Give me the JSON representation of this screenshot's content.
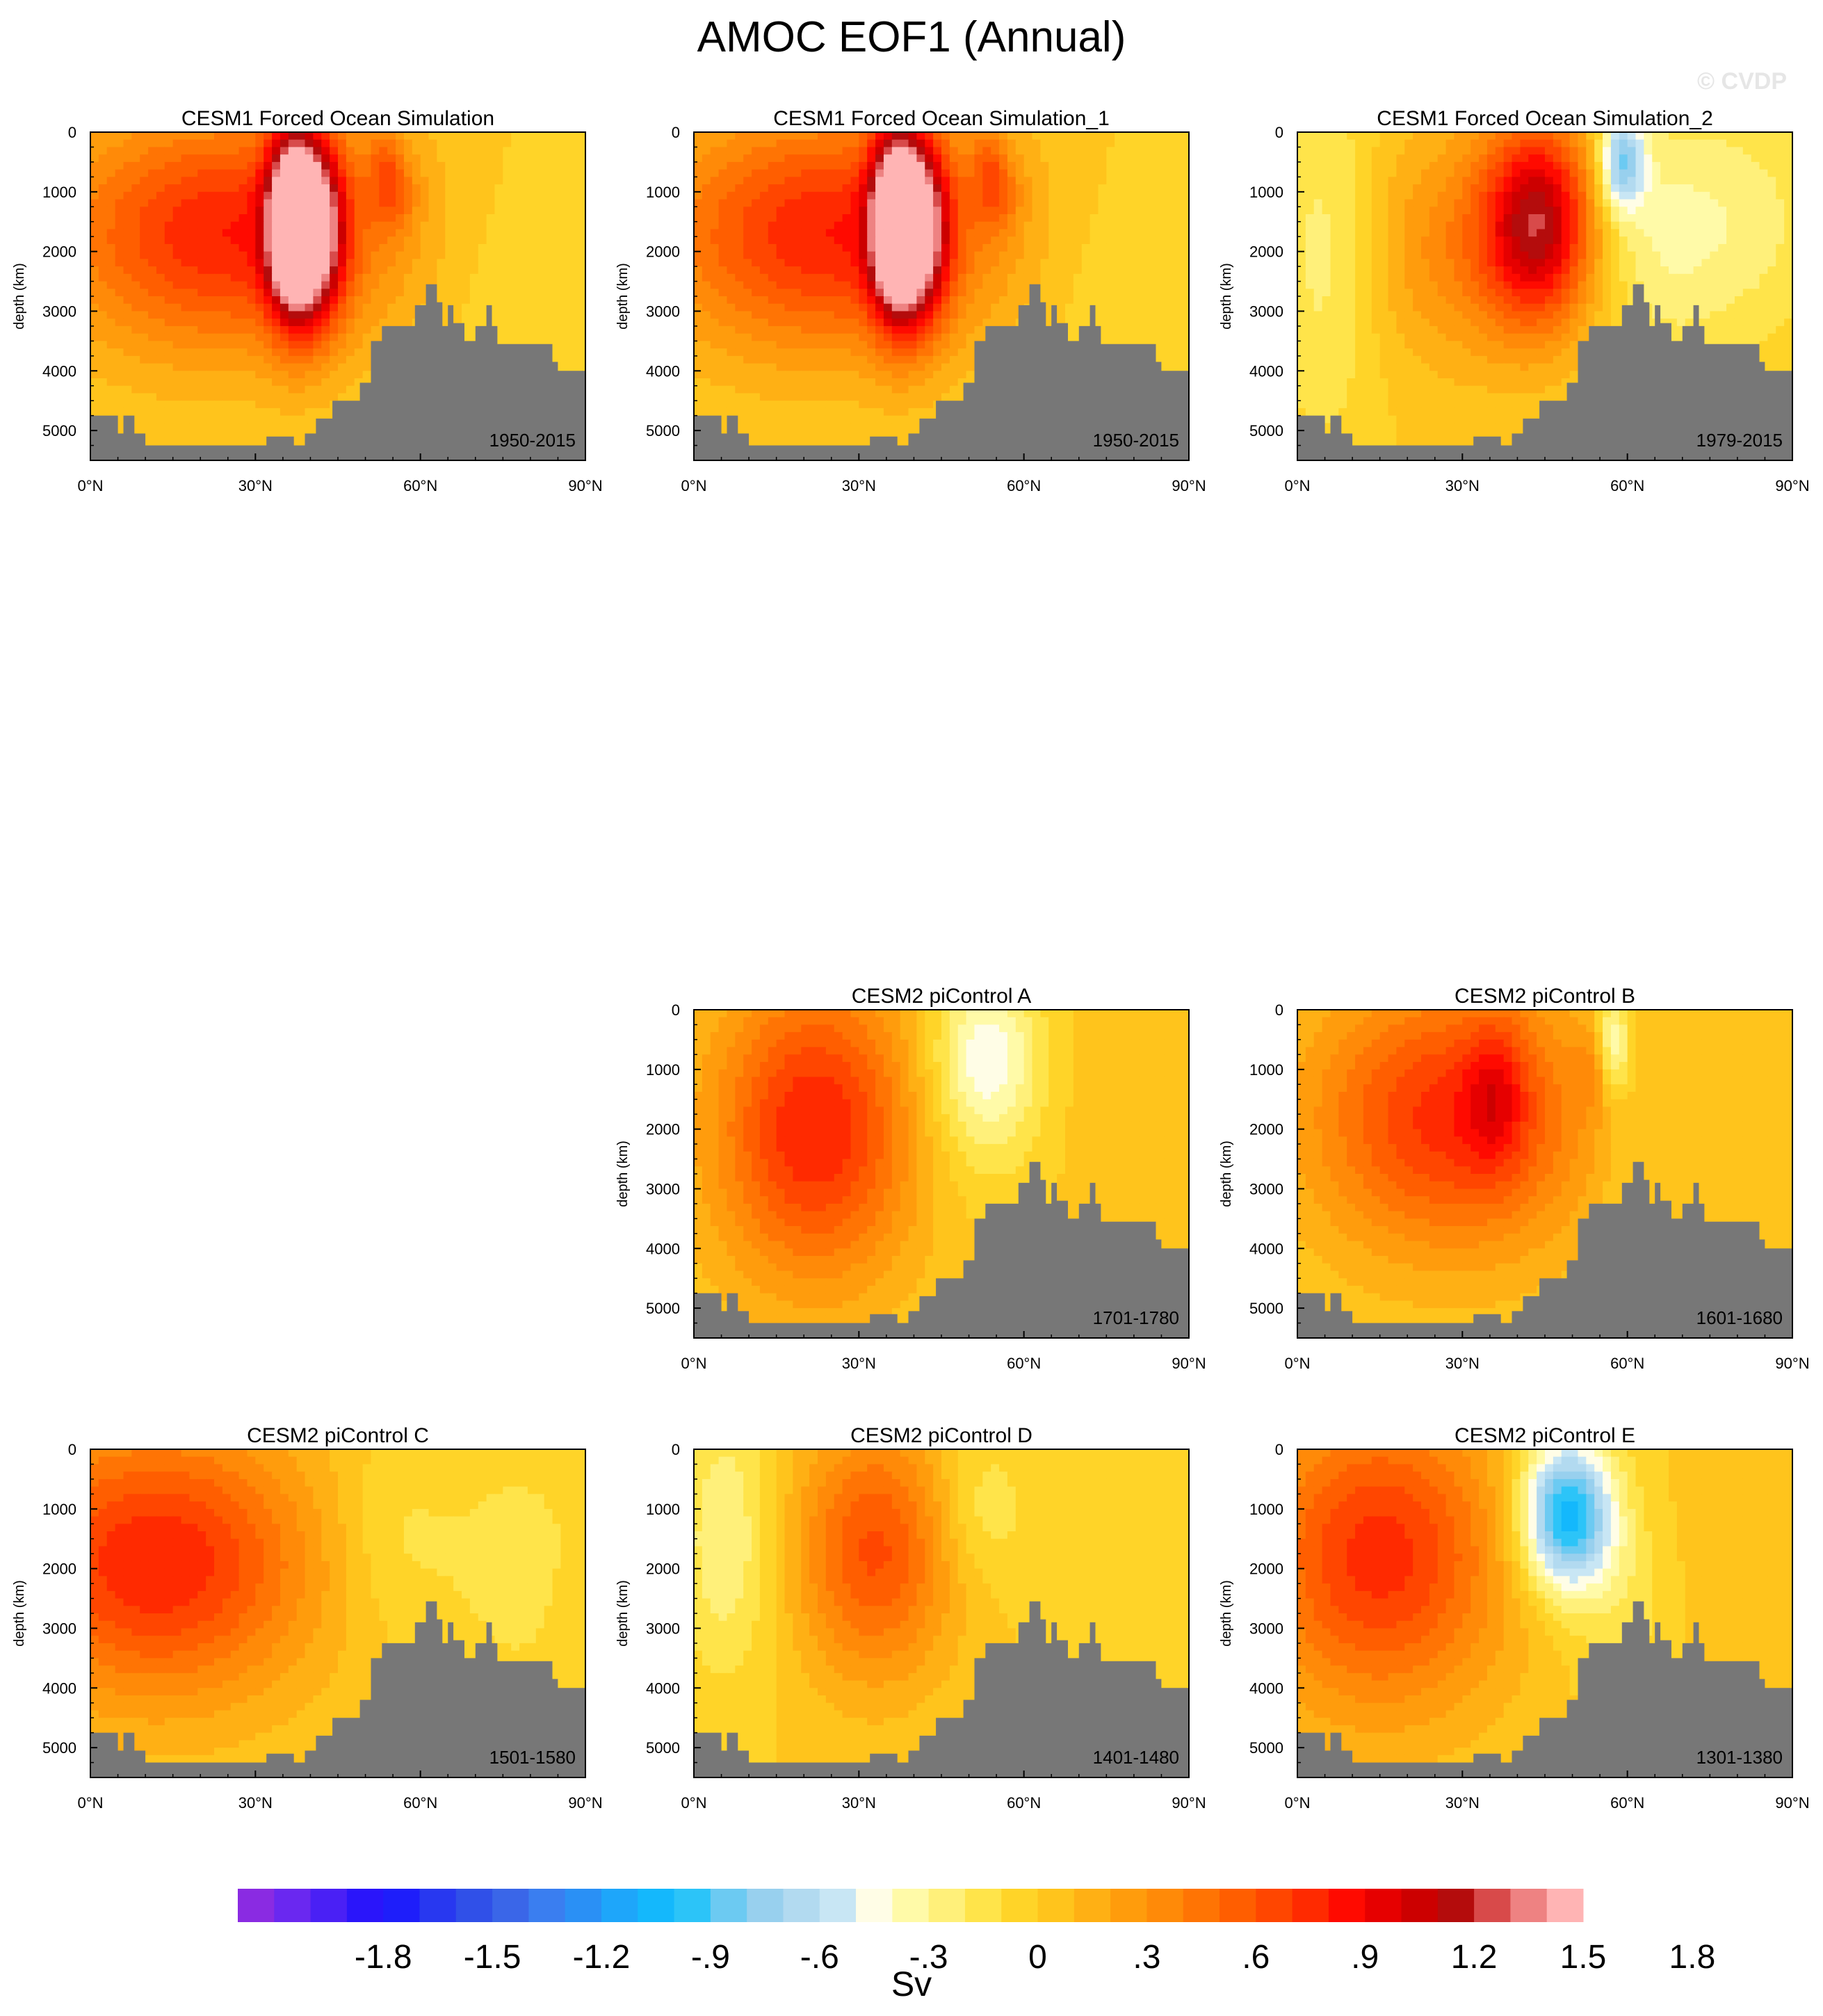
{
  "figure": {
    "title": "AMOC EOF1 (Annual)",
    "watermark": "© CVDP"
  },
  "chart_data": [
    {
      "type": "heatmap",
      "title": "CESM1 Forced Ocean Simulation",
      "period": "1950-2015",
      "ylabel": "depth (km)",
      "xlabel": "",
      "x_ticks": [
        "0°N",
        "30°N",
        "60°N",
        "90°N"
      ],
      "y_ticks": [
        "0",
        "1000",
        "2000",
        "3000",
        "4000",
        "5000"
      ],
      "xlim": [
        0,
        90
      ],
      "ylim": [
        5500,
        0
      ],
      "features": [
        {
          "lat": 25,
          "depth": 1700,
          "value": 0.8,
          "wlat": 22,
          "wdep": 1400
        },
        {
          "lat": 40,
          "depth": 1600,
          "value": 1.4,
          "wlat": 4,
          "wdep": 1100
        },
        {
          "lat": 36,
          "depth": 1500,
          "value": 0.9,
          "wlat": 3,
          "wdep": 1100
        },
        {
          "lat": 55,
          "depth": 700,
          "value": 0.5,
          "wlat": 3,
          "wdep": 600
        },
        {
          "lat": 57,
          "depth": 400,
          "value": -0.2,
          "wlat": 2,
          "wdep": 400
        },
        {
          "lat": 75,
          "depth": 2500,
          "value": -0.1,
          "wlat": 12,
          "wdep": 1500
        }
      ]
    },
    {
      "type": "heatmap",
      "title": "CESM1 Forced Ocean Simulation_1",
      "period": "1950-2015",
      "ylabel": "depth (km)",
      "xlabel": "",
      "x_ticks": [
        "0°N",
        "30°N",
        "60°N",
        "90°N"
      ],
      "y_ticks": [
        "0",
        "1000",
        "2000",
        "3000",
        "4000",
        "5000"
      ],
      "xlim": [
        0,
        90
      ],
      "ylim": [
        5500,
        0
      ],
      "features": [
        {
          "lat": 25,
          "depth": 1700,
          "value": 0.8,
          "wlat": 22,
          "wdep": 1400
        },
        {
          "lat": 40,
          "depth": 1600,
          "value": 1.4,
          "wlat": 4,
          "wdep": 1100
        },
        {
          "lat": 36,
          "depth": 1500,
          "value": 0.9,
          "wlat": 3,
          "wdep": 1100
        },
        {
          "lat": 55,
          "depth": 700,
          "value": 0.5,
          "wlat": 3,
          "wdep": 600
        },
        {
          "lat": 57,
          "depth": 400,
          "value": -0.2,
          "wlat": 2,
          "wdep": 400
        },
        {
          "lat": 75,
          "depth": 2500,
          "value": -0.1,
          "wlat": 12,
          "wdep": 1500
        }
      ]
    },
    {
      "type": "heatmap",
      "title": "CESM1 Forced Ocean Simulation_2",
      "period": "1979-2015",
      "ylabel": "depth (km)",
      "xlabel": "",
      "x_ticks": [
        "0°N",
        "30°N",
        "60°N",
        "90°N"
      ],
      "y_ticks": [
        "0",
        "1000",
        "2000",
        "3000",
        "4000",
        "5000"
      ],
      "xlim": [
        0,
        90
      ],
      "ylim": [
        5500,
        0
      ],
      "features": [
        {
          "lat": 44,
          "depth": 1500,
          "value": 1.05,
          "wlat": 7,
          "wdep": 1200
        },
        {
          "lat": 30,
          "depth": 1900,
          "value": 0.35,
          "wlat": 12,
          "wdep": 1400
        },
        {
          "lat": 59,
          "depth": 500,
          "value": -0.75,
          "wlat": 3,
          "wdep": 600
        },
        {
          "lat": 5,
          "depth": 2000,
          "value": -0.25,
          "wlat": 7,
          "wdep": 2200
        },
        {
          "lat": 80,
          "depth": 1500,
          "value": -0.25,
          "wlat": 12,
          "wdep": 1500
        },
        {
          "lat": 65,
          "depth": 1800,
          "value": -0.2,
          "wlat": 8,
          "wdep": 1500
        }
      ]
    },
    {
      "type": "heatmap",
      "title": "CESM2 piControl A",
      "period": "1701-1780",
      "ylabel": "depth (km)",
      "xlabel": "",
      "x_ticks": [
        "0°N",
        "30°N",
        "60°N",
        "90°N"
      ],
      "y_ticks": [
        "0",
        "1000",
        "2000",
        "3000",
        "4000",
        "5000"
      ],
      "xlim": [
        0,
        90
      ],
      "ylim": [
        5500,
        0
      ],
      "features": [
        {
          "lat": 22,
          "depth": 2000,
          "value": 0.8,
          "wlat": 13,
          "wdep": 1800
        },
        {
          "lat": 53,
          "depth": 700,
          "value": -0.45,
          "wlat": 7,
          "wdep": 900
        },
        {
          "lat": 52,
          "depth": 2000,
          "value": -0.15,
          "wlat": 8,
          "wdep": 1000
        },
        {
          "lat": 80,
          "depth": 1500,
          "value": 0.08,
          "wlat": 10,
          "wdep": 1500
        }
      ]
    },
    {
      "type": "heatmap",
      "title": "CESM2 piControl B",
      "period": "1601-1680",
      "ylabel": "depth (km)",
      "xlabel": "",
      "x_ticks": [
        "0°N",
        "30°N",
        "60°N",
        "90°N"
      ],
      "y_ticks": [
        "0",
        "1000",
        "2000",
        "3000",
        "4000",
        "5000"
      ],
      "xlim": [
        0,
        90
      ],
      "ylim": [
        5500,
        0
      ],
      "features": [
        {
          "lat": 28,
          "depth": 1800,
          "value": 0.75,
          "wlat": 18,
          "wdep": 1600
        },
        {
          "lat": 36,
          "depth": 1400,
          "value": 0.35,
          "wlat": 4,
          "wdep": 900
        },
        {
          "lat": 57,
          "depth": 600,
          "value": -0.5,
          "wlat": 2.5,
          "wdep": 600
        },
        {
          "lat": 54,
          "depth": 900,
          "value": 0.3,
          "wlat": 2,
          "wdep": 500
        },
        {
          "lat": 60,
          "depth": 2500,
          "value": -0.1,
          "wlat": 5,
          "wdep": 1500
        },
        {
          "lat": 80,
          "depth": 1500,
          "value": 0.05,
          "wlat": 10,
          "wdep": 1500
        }
      ]
    },
    {
      "type": "heatmap",
      "title": "CESM2 piControl C",
      "period": "1501-1580",
      "ylabel": "depth (km)",
      "xlabel": "",
      "x_ticks": [
        "0°N",
        "30°N",
        "60°N",
        "90°N"
      ],
      "y_ticks": [
        "0",
        "1000",
        "2000",
        "3000",
        "4000",
        "5000"
      ],
      "xlim": [
        0,
        90
      ],
      "ylim": [
        5500,
        0
      ],
      "features": [
        {
          "lat": 12,
          "depth": 1900,
          "value": 0.8,
          "wlat": 20,
          "wdep": 1600
        },
        {
          "lat": 55,
          "depth": 1500,
          "value": -0.15,
          "wlat": 8,
          "wdep": 1200
        },
        {
          "lat": 78,
          "depth": 2000,
          "value": -0.15,
          "wlat": 10,
          "wdep": 1500
        },
        {
          "lat": 87,
          "depth": 3000,
          "value": 0.05,
          "wlat": 3,
          "wdep": 800
        }
      ]
    },
    {
      "type": "heatmap",
      "title": "CESM2 piControl D",
      "period": "1401-1480",
      "ylabel": "depth (km)",
      "xlabel": "",
      "x_ticks": [
        "0°N",
        "30°N",
        "60°N",
        "90°N"
      ],
      "y_ticks": [
        "0",
        "1000",
        "2000",
        "3000",
        "4000",
        "5000"
      ],
      "xlim": [
        0,
        90
      ],
      "ylim": [
        5500,
        0
      ],
      "features": [
        {
          "lat": 33,
          "depth": 1700,
          "value": 0.62,
          "wlat": 10,
          "wdep": 1500
        },
        {
          "lat": 6,
          "depth": 1500,
          "value": -0.3,
          "wlat": 6,
          "wdep": 1600
        },
        {
          "lat": 52,
          "depth": 1000,
          "value": -0.2,
          "wlat": 6,
          "wdep": 900
        },
        {
          "lat": 78,
          "depth": 1800,
          "value": -0.1,
          "wlat": 10,
          "wdep": 1500
        }
      ]
    },
    {
      "type": "heatmap",
      "title": "CESM2 piControl E",
      "period": "1301-1380",
      "ylabel": "depth (km)",
      "xlabel": "",
      "x_ticks": [
        "0°N",
        "30°N",
        "60°N",
        "90°N"
      ],
      "y_ticks": [
        "0",
        "1000",
        "2000",
        "3000",
        "4000",
        "5000"
      ],
      "xlim": [
        0,
        90
      ],
      "ylim": [
        5500,
        0
      ],
      "features": [
        {
          "lat": 15,
          "depth": 1800,
          "value": 0.75,
          "wlat": 16,
          "wdep": 1800
        },
        {
          "lat": 49,
          "depth": 1100,
          "value": -1.1,
          "wlat": 6,
          "wdep": 900
        },
        {
          "lat": 60,
          "depth": 2600,
          "value": -0.15,
          "wlat": 7,
          "wdep": 1200
        },
        {
          "lat": 80,
          "depth": 2000,
          "value": 0.08,
          "wlat": 10,
          "wdep": 1500
        }
      ]
    }
  ],
  "colorbar": {
    "title": "Sv",
    "labels": [
      "-1.8",
      "-1.5",
      "-1.2",
      "-.9",
      "-.6",
      "-.3",
      "0",
      ".3",
      ".6",
      ".9",
      "1.2",
      "1.5",
      "1.8"
    ],
    "label_values": [
      -1.8,
      -1.5,
      -1.2,
      -0.9,
      -0.6,
      -0.3,
      0,
      0.3,
      0.6,
      0.9,
      1.2,
      1.5,
      1.8
    ],
    "levels_min": -2.1,
    "levels_step": 0.1,
    "colors": [
      "#8a2be2",
      "#6a28f0",
      "#4a20f5",
      "#2a15fa",
      "#1e1efa",
      "#2838f0",
      "#3050e8",
      "#3a66e8",
      "#3a7ef0",
      "#2a90f5",
      "#1ea6fa",
      "#14b8fc",
      "#2cc4f8",
      "#6ccaf2",
      "#98d0ee",
      "#b2daf0",
      "#c8e6f4",
      "#fffde6",
      "#fffaa8",
      "#fff07a",
      "#ffe44a",
      "#ffd428",
      "#ffc41c",
      "#ffb014",
      "#ff9c0c",
      "#ff8a08",
      "#ff7404",
      "#ff5e00",
      "#ff4600",
      "#ff2a00",
      "#ff0a00",
      "#e60000",
      "#cc0000",
      "#b40c0c",
      "#d84a4a",
      "#ee8282",
      "#ffb4b4"
    ]
  },
  "bathymetry_color": "#777777"
}
